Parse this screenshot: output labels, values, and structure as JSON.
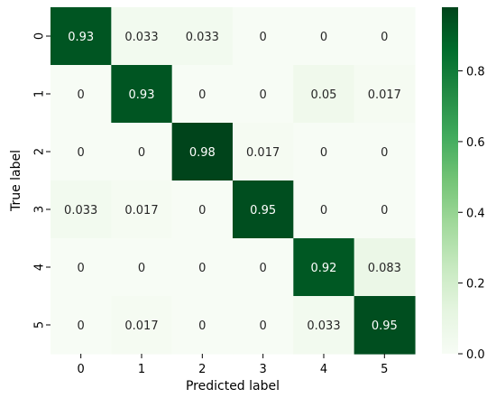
{
  "chart_data": {
    "type": "heatmap",
    "title": "",
    "xlabel": "Predicted label",
    "ylabel": "True label",
    "x_categories": [
      "0",
      "1",
      "2",
      "3",
      "4",
      "5"
    ],
    "y_categories": [
      "0",
      "1",
      "2",
      "3",
      "4",
      "5"
    ],
    "values": [
      [
        0.93,
        0.033,
        0.033,
        0,
        0,
        0
      ],
      [
        0,
        0.93,
        0,
        0,
        0.05,
        0.017
      ],
      [
        0,
        0,
        0.98,
        0.017,
        0,
        0
      ],
      [
        0.033,
        0.017,
        0,
        0.95,
        0,
        0
      ],
      [
        0,
        0,
        0,
        0,
        0.92,
        0.083
      ],
      [
        0,
        0.017,
        0,
        0,
        0.033,
        0.95
      ]
    ],
    "value_labels": [
      [
        "0.93",
        "0.033",
        "0.033",
        "0",
        "0",
        "0"
      ],
      [
        "0",
        "0.93",
        "0",
        "0",
        "0.05",
        "0.017"
      ],
      [
        "0",
        "0",
        "0.98",
        "0.017",
        "0",
        "0"
      ],
      [
        "0.033",
        "0.017",
        "0",
        "0.95",
        "0",
        "0"
      ],
      [
        "0",
        "0",
        "0",
        "0",
        "0.92",
        "0.083"
      ],
      [
        "0",
        "0.017",
        "0",
        "0",
        "0.033",
        "0.95"
      ]
    ],
    "colormap": "Greens",
    "colorscale_range": [
      0,
      0.98
    ],
    "colorbar_ticks": [
      "0.0",
      "0.2",
      "0.4",
      "0.6",
      "0.8"
    ],
    "colorbar_tick_values": [
      0,
      0.2,
      0.4,
      0.6,
      0.8
    ],
    "colors": {
      "low": "#f7fcf5",
      "high": "#00441b",
      "text_dark": "#262626",
      "text_light": "#ffffff"
    },
    "grid": false,
    "legend": "colorbar-right"
  }
}
